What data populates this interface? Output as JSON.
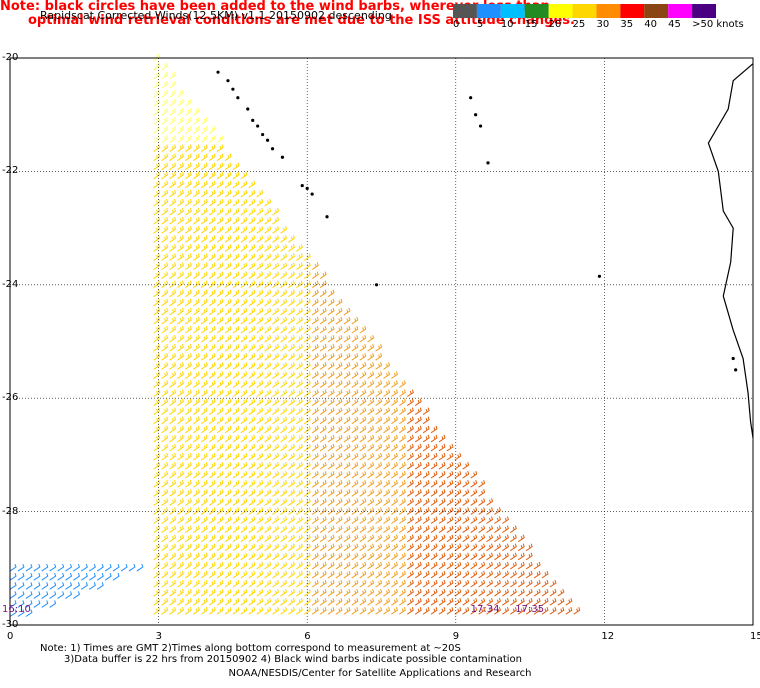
{
  "title": "Rapidscat Corrected Winds(12.5KM) v1.1 20150902 descending",
  "note_lines": [
    "Note: black circles have been added to the wind barbs, wherever less than",
    "optimal wind retrieval conditions are met due to the ISS attitude changes."
  ],
  "legend": {
    "labels": [
      "0",
      "5",
      "10",
      "15",
      "20",
      "25",
      "30",
      "35",
      "40",
      "45",
      ">50 knots"
    ],
    "colors": [
      "#555555",
      "#1e90ff",
      "#00bfff",
      "#228b22",
      "#ffff00",
      "#ffd700",
      "#ff8c00",
      "#ff0000",
      "#8b4513",
      "#ff00ff",
      "#4b0082"
    ]
  },
  "axes": {
    "x_ticks": [
      "0",
      "3",
      "6",
      "9",
      "12",
      "15"
    ],
    "y_ticks": [
      "-20",
      "-22",
      "-24",
      "-26",
      "-28",
      "-30"
    ]
  },
  "time_labels": [
    {
      "text": "16:10",
      "lon": 0.0,
      "lat": -29.7
    },
    {
      "text": "17:34",
      "lon": 9.3,
      "lat": -29.7
    },
    {
      "text": "17:35",
      "lon": 10.2,
      "lat": -29.7
    }
  ],
  "footnote_lines": [
    "Note: 1) Times are GMT 2)Times along bottom correspond to measurement at ~20S",
    "3)Data buffer is 22 hrs from 20150902 4) Black wind barbs indicate possible contamination"
  ],
  "credit": "NOAA/NESDIS/Center for Satellite Applications and Research",
  "map": {
    "lon_range": [
      0,
      15
    ],
    "lat_range": [
      -30,
      -20
    ],
    "grid": true,
    "coastline_color": "#000000",
    "barb_colors": {
      "light": "#ffff66",
      "mid": "#ffd700",
      "orange": "#f0a020",
      "dark": "#e06010",
      "green": "#22aa22",
      "blue": "#1e90ff",
      "purple": "#3333cc"
    },
    "coastline": [
      [
        15,
        -20.1
      ],
      [
        14.6,
        -20.4
      ],
      [
        14.5,
        -20.9
      ],
      [
        14.1,
        -21.5
      ],
      [
        14.3,
        -22.0
      ],
      [
        14.4,
        -22.7
      ],
      [
        14.6,
        -23.0
      ],
      [
        14.55,
        -23.6
      ],
      [
        14.4,
        -24.2
      ],
      [
        14.6,
        -24.8
      ],
      [
        14.8,
        -25.3
      ],
      [
        14.9,
        -25.9
      ],
      [
        14.95,
        -26.4
      ],
      [
        15,
        -26.7
      ]
    ],
    "flag_points": [
      [
        4.2,
        -20.25
      ],
      [
        4.4,
        -20.4
      ],
      [
        4.5,
        -20.55
      ],
      [
        4.6,
        -20.7
      ],
      [
        4.8,
        -20.9
      ],
      [
        4.9,
        -21.1
      ],
      [
        5.0,
        -21.2
      ],
      [
        5.1,
        -21.35
      ],
      [
        5.2,
        -21.45
      ],
      [
        5.3,
        -21.6
      ],
      [
        5.5,
        -21.75
      ],
      [
        5.9,
        -22.25
      ],
      [
        6.0,
        -22.3
      ],
      [
        6.1,
        -22.4
      ],
      [
        6.4,
        -22.8
      ],
      [
        9.3,
        -20.7
      ],
      [
        9.4,
        -21.0
      ],
      [
        9.5,
        -21.2
      ],
      [
        9.65,
        -21.85
      ],
      [
        7.4,
        -24.0
      ],
      [
        11.9,
        -23.85
      ],
      [
        14.6,
        -25.3
      ],
      [
        14.65,
        -25.5
      ]
    ]
  }
}
